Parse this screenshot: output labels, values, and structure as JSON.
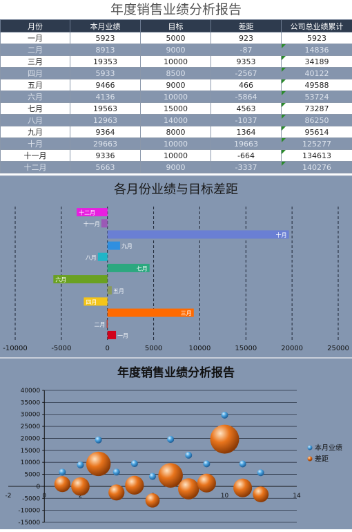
{
  "report_title": "年度销售业绩分析报告",
  "table": {
    "headers": [
      "月份",
      "本月业绩",
      "目标",
      "差距",
      "公司总业绩累计"
    ],
    "rows": [
      [
        "一月",
        "5923",
        "5000",
        "923",
        "5923"
      ],
      [
        "二月",
        "8913",
        "9000",
        "-87",
        "14836"
      ],
      [
        "三月",
        "19353",
        "10000",
        "9353",
        "34189"
      ],
      [
        "四月",
        "5933",
        "8500",
        "-2567",
        "40122"
      ],
      [
        "五月",
        "9466",
        "9000",
        "466",
        "49588"
      ],
      [
        "六月",
        "4136",
        "10000",
        "-5864",
        "53724"
      ],
      [
        "七月",
        "19563",
        "15000",
        "4563",
        "73287"
      ],
      [
        "八月",
        "12963",
        "14000",
        "-1037",
        "86250"
      ],
      [
        "九月",
        "9364",
        "8000",
        "1364",
        "95614"
      ],
      [
        "十月",
        "29663",
        "10000",
        "19663",
        "125277"
      ],
      [
        "十一月",
        "9336",
        "10000",
        "-664",
        "134613"
      ],
      [
        "十二月",
        "5663",
        "9000",
        "-3337",
        "140276"
      ]
    ]
  },
  "chart_data": [
    {
      "type": "bar",
      "orientation": "horizontal",
      "title": "各月份业绩与目标差距",
      "categories": [
        "一月",
        "二月",
        "三月",
        "四月",
        "五月",
        "六月",
        "七月",
        "八月",
        "九月",
        "十月",
        "十一月",
        "十二月"
      ],
      "values": [
        923,
        -87,
        9353,
        -2567,
        466,
        -5864,
        4563,
        -1037,
        1364,
        19663,
        -664,
        -3337
      ],
      "bar_colors": [
        "#d0021b",
        "#c0392b",
        "#ff6a00",
        "#f5c518",
        "#8a9a5b",
        "#6aa121",
        "#2ca87f",
        "#1fb5c7",
        "#2f8fe0",
        "#6a7fd4",
        "#9b59b6",
        "#e81ee0"
      ],
      "xlim": [
        -10000,
        25000
      ],
      "xticks": [
        -10000,
        -5000,
        0,
        5000,
        10000,
        15000,
        20000,
        25000
      ],
      "grid": "vertical-dashed",
      "legend": "none"
    },
    {
      "type": "scatter",
      "subtype": "bubble",
      "title": "年度销售业绩分析报告",
      "x": [
        1,
        2,
        3,
        4,
        5,
        6,
        7,
        8,
        9,
        10,
        11,
        12
      ],
      "series": [
        {
          "name": "本月业绩",
          "y": [
            5923,
            8913,
            19353,
            5933,
            9466,
            4136,
            19563,
            12963,
            9364,
            29663,
            9336,
            5663
          ],
          "color": "#4aa3e0"
        },
        {
          "name": "差距",
          "y": [
            923,
            -87,
            9353,
            -2567,
            466,
            -5864,
            4563,
            -1037,
            1364,
            19663,
            -664,
            -3337
          ],
          "color": "#e8741c"
        }
      ],
      "xlim": [
        -2,
        14
      ],
      "xticks": [
        -2,
        0,
        2,
        4,
        6,
        8,
        10,
        12,
        14
      ],
      "ylim": [
        -15000,
        40000
      ],
      "yticks": [
        -15000,
        -10000,
        -5000,
        0,
        5000,
        10000,
        15000,
        20000,
        25000,
        30000,
        35000,
        40000
      ],
      "grid": "horizontal",
      "legend": "right"
    }
  ]
}
